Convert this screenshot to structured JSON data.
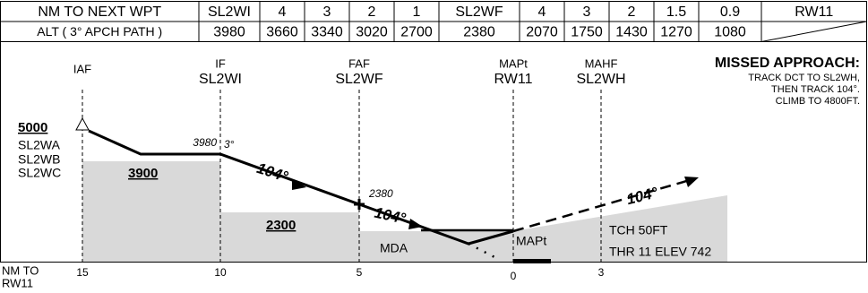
{
  "table": {
    "rows": [
      [
        "NM TO NEXT WPT",
        "SL2WI",
        "4",
        "3",
        "2",
        "1",
        "SL2WF",
        "4",
        "3",
        "2",
        "1.5",
        "0.9",
        "RW11"
      ],
      [
        "ALT ( 3° APCH PATH )",
        "3980",
        "3660",
        "3340",
        "3020",
        "2700",
        "2380",
        "2070",
        "1750",
        "1430",
        "1270",
        "1080"
      ]
    ]
  },
  "fixes": [
    {
      "label": "IAF"
    },
    {
      "label": "IF",
      "name": "SL2WI"
    },
    {
      "label": "FAF",
      "name": "SL2WF"
    },
    {
      "label": "MAPt",
      "name": "RW11"
    },
    {
      "label": "MAHF",
      "name": "SL2WH"
    }
  ],
  "missed_approach": {
    "title": "MISSED APPROACH:",
    "lines": [
      "TRACK DCT TO SL2WH,",
      "THEN TRACK 104°.",
      "CLIMB TO 4800FT."
    ]
  },
  "initial": {
    "altitude": "5000",
    "fixes": [
      "SL2WA",
      "SL2WB",
      "SL2WC"
    ]
  },
  "profile": {
    "if_altitude": "3980",
    "glide_angle": "3°",
    "faf_altitude": "2380",
    "track_inbound": "104°",
    "track_outbound": "104°",
    "minimums": [
      "3900",
      "2300"
    ],
    "mda": "MDA",
    "mapt": "MAPt",
    "tch": "TCH 50FT",
    "threshold": "THR 11 ELEV 742"
  },
  "distance_scale": {
    "label": [
      "NM TO",
      "RW11"
    ],
    "ticks": [
      "15",
      "10",
      "5",
      "0",
      "3"
    ]
  }
}
